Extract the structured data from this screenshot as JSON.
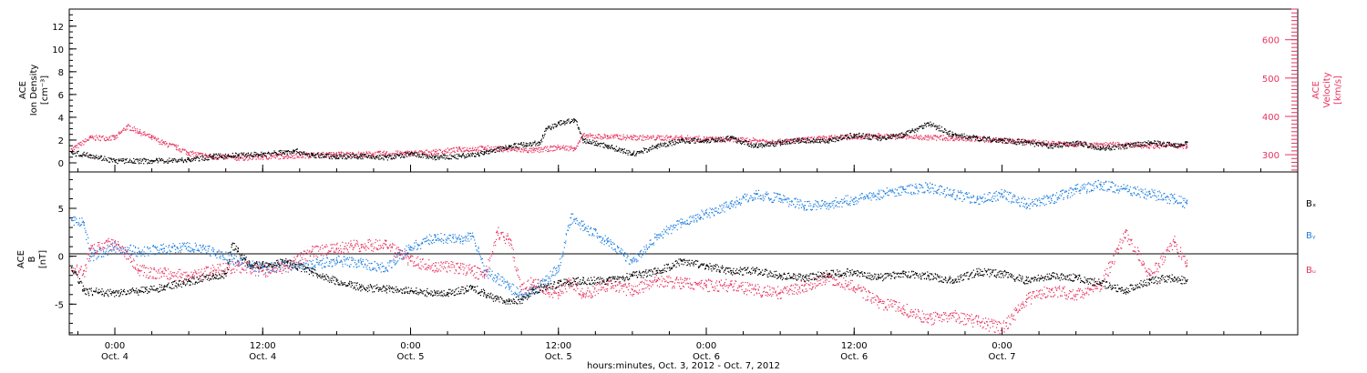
{
  "colors": {
    "black": "#000000",
    "pink": "#e8335f",
    "blue": "#1f7fe0",
    "background": "#ffffff"
  },
  "chart_data": [
    {
      "type": "scatter",
      "panel": "top",
      "ylabel_left_lines": [
        "ACE",
        "Ion Density",
        "[cm⁻³]"
      ],
      "ylabel_right_lines": [
        "ACE",
        "Velocity",
        "[km/s]"
      ],
      "y_left_ticks": [
        "0",
        "2",
        "4",
        "6",
        "8",
        "10",
        "12"
      ],
      "y_left_lim": [
        -0.8,
        13.5
      ],
      "y_right_ticks": [
        "300",
        "400",
        "500",
        "600"
      ],
      "y_right_lim": [
        255,
        680
      ],
      "x_lim_hours": [
        -3.7,
        96.0
      ],
      "series": [
        {
          "name": "",
          "axis": "left",
          "color": "#000000",
          "points": [
            [
              -3.5,
              0.9
            ],
            [
              -2,
              0.7
            ],
            [
              0,
              0.2
            ],
            [
              3,
              0.2
            ],
            [
              6,
              0.3
            ],
            [
              8,
              0.6
            ],
            [
              10,
              0.7
            ],
            [
              12,
              0.8
            ],
            [
              14,
              1.0
            ],
            [
              14.5,
              1.1
            ],
            [
              16,
              0.7
            ],
            [
              18,
              0.6
            ],
            [
              20,
              0.6
            ],
            [
              22,
              0.5
            ],
            [
              24,
              0.8
            ],
            [
              26,
              0.5
            ],
            [
              28,
              0.6
            ],
            [
              30,
              0.9
            ],
            [
              32,
              1.5
            ],
            [
              34.5,
              1.8
            ],
            [
              35,
              3.0
            ],
            [
              36,
              3.5
            ],
            [
              37.3,
              3.8
            ],
            [
              38,
              2.0
            ],
            [
              40,
              1.5
            ],
            [
              42,
              0.8
            ],
            [
              44,
              1.5
            ],
            [
              46,
              2.0
            ],
            [
              48,
              2.0
            ],
            [
              50,
              2.2
            ],
            [
              52,
              1.5
            ],
            [
              54,
              1.8
            ],
            [
              55.5,
              2.0
            ],
            [
              58,
              2.0
            ],
            [
              60,
              2.5
            ],
            [
              62,
              2.2
            ],
            [
              64,
              2.5
            ],
            [
              66,
              3.5
            ],
            [
              68,
              2.5
            ],
            [
              70,
              2.2
            ],
            [
              72,
              2.0
            ],
            [
              74,
              1.8
            ],
            [
              76,
              1.5
            ],
            [
              78,
              1.8
            ],
            [
              80,
              1.3
            ],
            [
              82,
              1.5
            ],
            [
              84,
              1.8
            ],
            [
              86,
              1.6
            ],
            [
              87,
              1.8
            ]
          ]
        },
        {
          "name": "",
          "axis": "right",
          "color": "#e8335f",
          "points": [
            [
              -3.5,
              315
            ],
            [
              -2,
              345
            ],
            [
              0,
              345
            ],
            [
              1,
              375
            ],
            [
              2,
              360
            ],
            [
              3,
              345
            ],
            [
              4,
              330
            ],
            [
              5,
              320
            ],
            [
              6,
              305
            ],
            [
              8,
              295
            ],
            [
              10,
              293
            ],
            [
              12,
              295
            ],
            [
              14,
              298
            ],
            [
              16,
              300
            ],
            [
              18,
              302
            ],
            [
              20,
              302
            ],
            [
              22,
              304
            ],
            [
              24,
              305
            ],
            [
              26,
              308
            ],
            [
              28,
              315
            ],
            [
              30,
              318
            ],
            [
              32,
              315
            ],
            [
              34,
              312
            ],
            [
              36,
              320
            ],
            [
              37.3,
              318
            ],
            [
              38,
              350
            ],
            [
              40,
              348
            ],
            [
              42,
              346
            ],
            [
              44,
              345
            ],
            [
              46,
              345
            ],
            [
              48,
              342
            ],
            [
              50,
              340
            ],
            [
              52,
              338
            ],
            [
              54,
              335
            ],
            [
              56,
              340
            ],
            [
              58,
              345
            ],
            [
              60,
              348
            ],
            [
              62,
              350
            ],
            [
              64,
              348
            ],
            [
              66,
              346
            ],
            [
              68,
              345
            ],
            [
              70,
              342
            ],
            [
              72,
              338
            ],
            [
              74,
              335
            ],
            [
              76,
              330
            ],
            [
              78,
              328
            ],
            [
              80,
              328
            ],
            [
              82,
              326
            ],
            [
              84,
              325
            ],
            [
              86,
              325
            ],
            [
              87,
              323
            ]
          ]
        }
      ]
    },
    {
      "type": "scatter",
      "panel": "bottom",
      "ylabel_lines": [
        "ACE",
        "B",
        "[nT]"
      ],
      "y_ticks": [
        "-5",
        "0",
        "5"
      ],
      "y_lim": [
        -8.2,
        8.8
      ],
      "x_lim_hours": [
        -3.7,
        96.0
      ],
      "legend": [
        "Bₓ",
        "Bᵧ",
        "Bᵤ"
      ],
      "series": [
        {
          "name": "Bₓ",
          "color": "#000000",
          "points": [
            [
              -3.5,
              -1.2
            ],
            [
              -2.5,
              -3.6
            ],
            [
              0,
              -3.8
            ],
            [
              2,
              -3.6
            ],
            [
              4,
              -3.2
            ],
            [
              6,
              -2.6
            ],
            [
              8,
              -2.0
            ],
            [
              9,
              -1.8
            ],
            [
              9.5,
              1.2
            ],
            [
              10,
              0.5
            ],
            [
              11,
              -1.0
            ],
            [
              12,
              -0.8
            ],
            [
              14,
              -0.6
            ],
            [
              16,
              -1.6
            ],
            [
              18,
              -2.6
            ],
            [
              20,
              -3.2
            ],
            [
              22,
              -3.4
            ],
            [
              24,
              -3.6
            ],
            [
              26,
              -3.8
            ],
            [
              27,
              -3.8
            ],
            [
              29,
              -3.3
            ],
            [
              30,
              -3.8
            ],
            [
              31,
              -4.5
            ],
            [
              32,
              -4.6
            ],
            [
              33,
              -4.5
            ],
            [
              34,
              -3.5
            ],
            [
              36,
              -2.8
            ],
            [
              38,
              -2.5
            ],
            [
              40,
              -2.5
            ],
            [
              42,
              -2.0
            ],
            [
              44,
              -1.5
            ],
            [
              46,
              -0.5
            ],
            [
              48,
              -1.0
            ],
            [
              50,
              -1.5
            ],
            [
              52,
              -1.5
            ],
            [
              54,
              -2.0
            ],
            [
              56,
              -2.2
            ],
            [
              58,
              -1.8
            ],
            [
              60,
              -1.6
            ],
            [
              62,
              -2.2
            ],
            [
              64,
              -1.8
            ],
            [
              66,
              -2.0
            ],
            [
              68,
              -2.5
            ],
            [
              70,
              -1.6
            ],
            [
              72,
              -1.8
            ],
            [
              74,
              -2.5
            ],
            [
              76,
              -2.0
            ],
            [
              78,
              -2.2
            ],
            [
              80,
              -2.8
            ],
            [
              82,
              -3.5
            ],
            [
              84,
              -2.5
            ],
            [
              86,
              -2.2
            ],
            [
              87,
              -2.6
            ]
          ]
        },
        {
          "name": "Bᵧ",
          "color": "#1f7fe0",
          "points": [
            [
              -3.5,
              3.8
            ],
            [
              -2.5,
              3.5
            ],
            [
              -2,
              0.0
            ],
            [
              0,
              1.0
            ],
            [
              2,
              0.5
            ],
            [
              4,
              0.8
            ],
            [
              6,
              1.0
            ],
            [
              8,
              0.5
            ],
            [
              10,
              -0.5
            ],
            [
              12,
              -1.2
            ],
            [
              14,
              -1.0
            ],
            [
              16,
              -0.8
            ],
            [
              18,
              -0.4
            ],
            [
              20,
              -0.7
            ],
            [
              22,
              -1.2
            ],
            [
              24,
              1.0
            ],
            [
              26,
              2.0
            ],
            [
              28,
              1.8
            ],
            [
              29,
              2.1
            ],
            [
              30,
              -1.5
            ],
            [
              31,
              -2.2
            ],
            [
              32,
              -3.2
            ],
            [
              33,
              -4.0
            ],
            [
              34,
              -3.5
            ],
            [
              35,
              -2.5
            ],
            [
              36,
              -1.0
            ],
            [
              37,
              4.0
            ],
            [
              38,
              3.2
            ],
            [
              40,
              1.5
            ],
            [
              42,
              -0.5
            ],
            [
              44,
              2.2
            ],
            [
              46,
              3.5
            ],
            [
              48,
              4.5
            ],
            [
              50,
              5.5
            ],
            [
              52,
              6.5
            ],
            [
              54,
              6.0
            ],
            [
              56,
              5.3
            ],
            [
              58,
              5.5
            ],
            [
              60,
              6.0
            ],
            [
              62,
              6.5
            ],
            [
              64,
              7.0
            ],
            [
              66,
              7.2
            ],
            [
              68,
              6.5
            ],
            [
              70,
              6.0
            ],
            [
              72,
              6.5
            ],
            [
              74,
              5.5
            ],
            [
              76,
              6.0
            ],
            [
              78,
              7.0
            ],
            [
              80,
              7.5
            ],
            [
              82,
              7.0
            ],
            [
              84,
              6.5
            ],
            [
              86,
              6.0
            ],
            [
              87,
              5.5
            ]
          ]
        },
        {
          "name": "Bᵤ",
          "color": "#e8335f",
          "points": [
            [
              -3.5,
              -1.5
            ],
            [
              -2.5,
              -1.5
            ],
            [
              -2,
              0.8
            ],
            [
              0,
              1.5
            ],
            [
              1,
              0.3
            ],
            [
              2,
              -1.5
            ],
            [
              4,
              -1.8
            ],
            [
              6,
              -2.0
            ],
            [
              8,
              -1.5
            ],
            [
              10,
              -1.0
            ],
            [
              12,
              -1.5
            ],
            [
              14,
              -1.0
            ],
            [
              16,
              0.5
            ],
            [
              18,
              0.8
            ],
            [
              20,
              1.2
            ],
            [
              22,
              1.2
            ],
            [
              24,
              -0.5
            ],
            [
              26,
              -1.0
            ],
            [
              28,
              -1.2
            ],
            [
              29,
              -1.5
            ],
            [
              30,
              -2.0
            ],
            [
              31,
              2.5
            ],
            [
              32,
              1.8
            ],
            [
              33,
              -3.5
            ],
            [
              34,
              -2.5
            ],
            [
              35,
              -3.5
            ],
            [
              36,
              -3.8
            ],
            [
              37,
              -2.5
            ],
            [
              38,
              -4.0
            ],
            [
              40,
              -3.0
            ],
            [
              42,
              -3.5
            ],
            [
              44,
              -2.5
            ],
            [
              46,
              -2.8
            ],
            [
              48,
              -3.0
            ],
            [
              50,
              -3.0
            ],
            [
              52,
              -3.5
            ],
            [
              54,
              -3.8
            ],
            [
              56,
              -3.0
            ],
            [
              58,
              -2.2
            ],
            [
              60,
              -3.2
            ],
            [
              62,
              -4.8
            ],
            [
              64,
              -5.5
            ],
            [
              66,
              -6.5
            ],
            [
              68,
              -6.2
            ],
            [
              70,
              -6.8
            ],
            [
              72,
              -7.5
            ],
            [
              74,
              -4.5
            ],
            [
              76,
              -3.5
            ],
            [
              78,
              -4.0
            ],
            [
              80,
              -3.0
            ],
            [
              82,
              2.5
            ],
            [
              84,
              -2.0
            ],
            [
              86,
              1.5
            ],
            [
              87,
              -1.0
            ]
          ]
        }
      ]
    }
  ],
  "x_ticks": [
    {
      "hours": 0,
      "time": "0:00",
      "date": "Oct. 4"
    },
    {
      "hours": 12,
      "time": "12:00",
      "date": "Oct. 4"
    },
    {
      "hours": 24,
      "time": "0:00",
      "date": "Oct. 5"
    },
    {
      "hours": 36,
      "time": "12:00",
      "date": "Oct. 5"
    },
    {
      "hours": 48,
      "time": "0:00",
      "date": "Oct. 6"
    },
    {
      "hours": 60,
      "time": "12:00",
      "date": "Oct. 6"
    },
    {
      "hours": 72,
      "time": "0:00",
      "date": "Oct. 7"
    }
  ],
  "xlabel": "hours:minutes, Oct.  3, 2012 - Oct.  7, 2012"
}
